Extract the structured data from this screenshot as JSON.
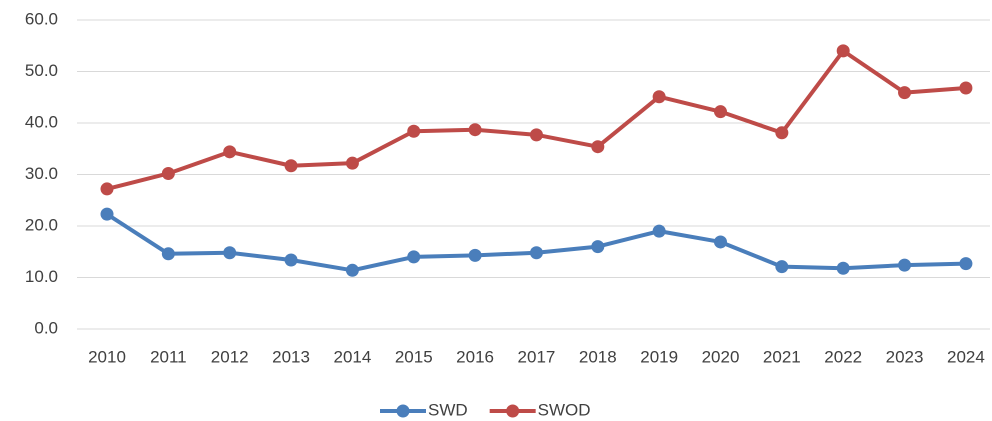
{
  "chart_data": {
    "type": "line",
    "categories": [
      "2010",
      "2011",
      "2012",
      "2013",
      "2014",
      "2015",
      "2016",
      "2017",
      "2018",
      "2019",
      "2020",
      "2021",
      "2022",
      "2023",
      "2024"
    ],
    "series": [
      {
        "name": "SWD",
        "color": "#4a7ebb",
        "values": [
          22.3,
          14.6,
          14.8,
          13.4,
          11.4,
          14.0,
          14.3,
          14.8,
          16.0,
          19.0,
          16.9,
          12.1,
          11.8,
          12.4,
          12.7
        ]
      },
      {
        "name": "SWOD",
        "color": "#be4b48",
        "values": [
          27.2,
          30.2,
          34.4,
          31.7,
          32.2,
          38.4,
          38.7,
          37.7,
          35.4,
          45.1,
          42.2,
          38.1,
          54.0,
          45.9,
          46.8
        ]
      }
    ],
    "ylim": [
      0,
      60
    ],
    "yticks": [
      {
        "value": 0,
        "label": "0.0"
      },
      {
        "value": 10,
        "label": "10.0"
      },
      {
        "value": 20,
        "label": "20.0"
      },
      {
        "value": 30,
        "label": "30.0"
      },
      {
        "value": 40,
        "label": "40.0"
      },
      {
        "value": 50,
        "label": "50.0"
      },
      {
        "value": 60,
        "label": "60.0"
      }
    ],
    "grid": true,
    "legend": "bottom"
  }
}
